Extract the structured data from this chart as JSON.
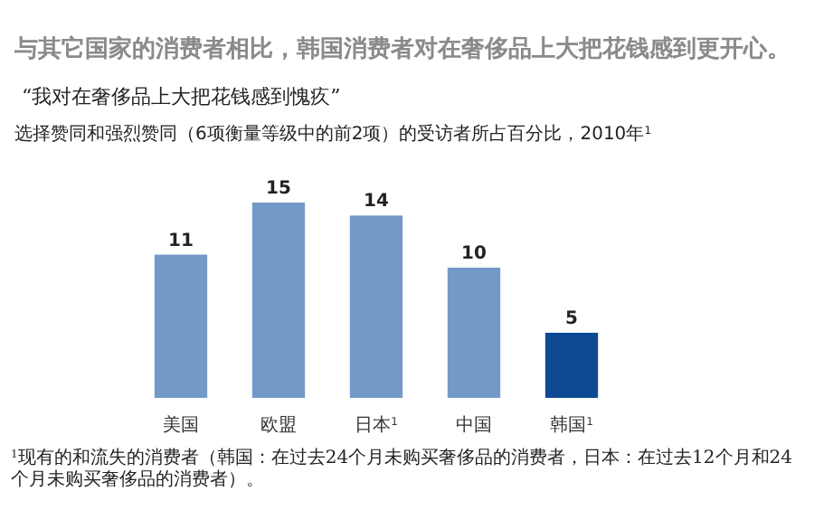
{
  "chart_data": {
    "type": "bar",
    "title": "与其它国家的消费者相比，韩国消费者对在奢侈品上大把花钱感到更开心。",
    "subtitle": "“我对在奢侈品上大把花钱感到愧疚”",
    "ylabel": "选择赞同和强烈赞同（6项衡量等级中的前2项）的受访者所占百分比，2010年$^{1}$",
    "categories": [
      "美国",
      "欧盟",
      "日本$^{1}$",
      "中国",
      "韩国$^{1}$"
    ],
    "values": [
      11,
      15,
      14,
      10,
      5
    ],
    "colors": [
      "#7399c9",
      "#7399c9",
      "#7399c9",
      "#7399c9",
      "#0e4a94"
    ],
    "data_labels": true,
    "annotations": [
      "$^{1}$现有的和流失的消费者（韩国：在过去24个月未购买奢侈品的消费者，日本：在过去12个月和24个月未购买奢侈品的消费者）。"
    ]
  }
}
